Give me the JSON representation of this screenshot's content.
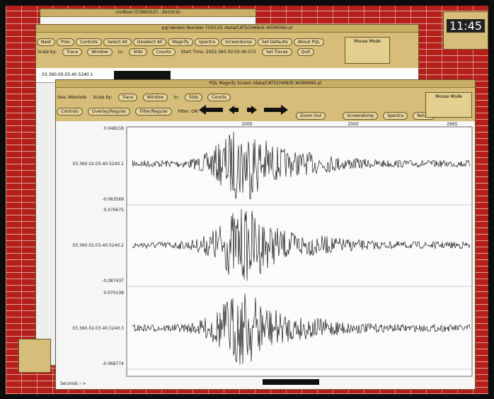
{
  "console": {
    "title": "cmdtool (CONSOLE) - /bin/tcsh"
  },
  "clock": {
    "time": "11:45"
  },
  "main_window": {
    "title": "pql   Version Number 7003.02    /data/CATSCHAN/IE.WORKING.pl",
    "buttons": [
      "Next",
      "Prev",
      "Controls",
      "Select All",
      "Deselect All",
      "Magnify",
      "Spectra",
      "Screendump",
      "Set Defaults",
      "About PQL"
    ],
    "scale_label": "Scale by:",
    "scale_options": [
      "Trace",
      "Window"
    ],
    "in_label": "in:",
    "unit_options": [
      "Stds",
      "Counts"
    ],
    "start_time": "Start Time: 2002.360.00:03:40.072",
    "extra_buttons": [
      "Set Traces",
      "Quit"
    ],
    "mouse_mode": "Mouse Mode",
    "trace_label": "03.360.00.03.40.5240.1"
  },
  "magnify_window": {
    "title": "PQL Magnify Screen     /data/CATSCHAN/IE.WORKING.pl",
    "sea_label": "Sea: Absolute",
    "scale_label": "Scale by:",
    "scale_options": [
      "Trace",
      "Window"
    ],
    "in_label": "in:",
    "unit_options": [
      "Stds",
      "Counts"
    ],
    "buttons": [
      "Controls",
      "Overlay/Regular",
      "Filter/Regular"
    ],
    "filter_state": "Filter: ON",
    "right_buttons": [
      "Zoom Out",
      "Screendump",
      "Spectra",
      "Return"
    ],
    "mouse_mode": "Mouse Mode",
    "axis_ticks": [
      "1000",
      "2000",
      "2965"
    ],
    "traces": [
      {
        "label": "03.360.02.03.40.5240.1",
        "max": "0.048218",
        "min": "-0.063569"
      },
      {
        "label": "03.360.02.03.40.5240.2",
        "max": "0.076675",
        "min": "-0.087437"
      },
      {
        "label": "03.360.02.03.40.5240.3",
        "max": "0.070108",
        "min": "-0.068774"
      }
    ],
    "footer": "Seconds -->"
  }
}
